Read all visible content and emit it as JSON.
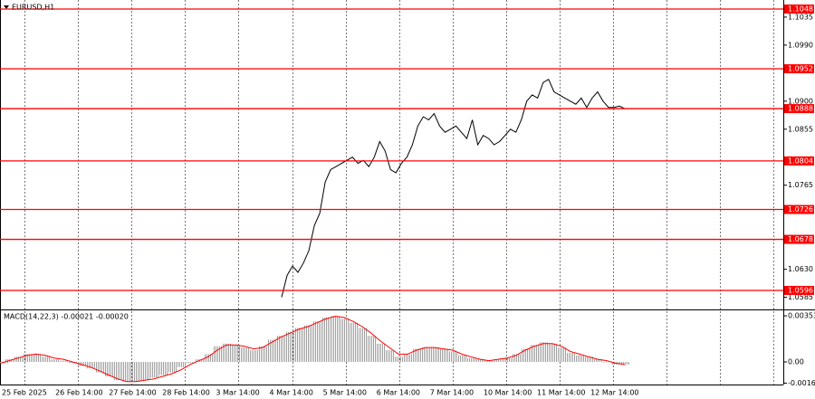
{
  "chart_data": [
    {
      "type": "line",
      "title": "EURUSD,H1",
      "time_labels": [
        "25 Feb 2025",
        "26 Feb 14:00",
        "27 Feb 14:00",
        "28 Feb 14:00",
        "3 Mar 14:00",
        "4 Mar 14:00",
        "5 Mar 14:00",
        "6 Mar 14:00",
        "7 Mar 14:00",
        "10 Mar 14:00",
        "11 Mar 14:00",
        "12 Mar 14:00"
      ],
      "values": [
        1.0585,
        1.062,
        1.0635,
        1.0625,
        1.064,
        1.066,
        1.07,
        1.072,
        1.077,
        1.079,
        1.0795,
        1.08,
        1.0805,
        1.081,
        1.08,
        1.0805,
        1.0795,
        1.081,
        1.0835,
        1.082,
        1.079,
        1.0785,
        1.08,
        1.081,
        1.083,
        1.086,
        1.0875,
        1.087,
        1.088,
        1.086,
        1.085,
        1.0855,
        1.086,
        1.085,
        1.084,
        1.087,
        1.083,
        1.0845,
        1.084,
        1.083,
        1.0835,
        1.0845,
        1.0855,
        1.085,
        1.087,
        1.09,
        1.091,
        1.0905,
        1.093,
        1.0935,
        1.0915,
        1.091,
        1.0905,
        1.09,
        1.0895,
        1.0905,
        1.089,
        1.0905,
        1.0915,
        1.09,
        1.089,
        1.089,
        1.0892,
        1.0888
      ],
      "color": "#000000",
      "ylim": [
        1.05669,
        1.10625
      ],
      "yticks": [
        1.1035,
        {
          "value": 1.099,
          "label": "1.0990"
        },
        {
          "value": 1.09,
          "label": "1.0900"
        },
        1.0855,
        1.0765,
        {
          "value": 1.063,
          "label": "1.0630"
        },
        1.0585
      ],
      "levels": [
        1.1048,
        1.0952,
        1.0888,
        1.0804,
        1.0726,
        1.0678,
        1.0596
      ],
      "level_color": "#ff0000",
      "grid": true
    },
    {
      "type": "macd",
      "title": "MACD(14,22,3) -0.00021 -0.00020",
      "histogram": {
        "color": "#a0a0a0",
        "values": [
          -0.0001,
          0.0002,
          0.0004,
          0.0006,
          0.0006,
          0.0004,
          0.0002,
          0.0001,
          -0.0001,
          -0.0003,
          -0.0005,
          -0.0008,
          -0.0011,
          -0.0014,
          -0.0015,
          -0.0015,
          -0.0014,
          -0.0012,
          -0.001,
          -0.0008,
          -0.0004,
          -0.0001,
          0.0002,
          0.0006,
          0.0012,
          0.0014,
          0.0013,
          0.0011,
          0.0009,
          0.0012,
          0.0017,
          0.002,
          0.0023,
          0.0026,
          0.0028,
          0.0031,
          0.0034,
          0.0035,
          0.0033,
          0.003,
          0.0026,
          0.002,
          0.0014,
          0.0009,
          0.0004,
          0.0006,
          0.001,
          0.0011,
          0.0011,
          0.001,
          0.0008,
          0.0005,
          0.0003,
          0.0002,
          0.0001,
          0.0002,
          0.0003,
          0.0006,
          0.001,
          0.0013,
          0.0015,
          0.0014,
          0.0011,
          0.0007,
          0.0005,
          0.0004,
          0.0002,
          0,
          -0.0002,
          -0.0002
        ]
      },
      "signal": {
        "color": "#ff0000",
        "values": [
          -0.0001,
          0.0001,
          0.0003,
          0.0005,
          0.0006,
          0.0005,
          0.0003,
          0.0002,
          0,
          -0.0002,
          -0.0004,
          -0.0007,
          -0.001,
          -0.0013,
          -0.0015,
          -0.0015,
          -0.0014,
          -0.0013,
          -0.0011,
          -0.0009,
          -0.0006,
          -0.0002,
          0.0001,
          0.0004,
          0.0009,
          0.0013,
          0.0013,
          0.0012,
          0.001,
          0.0011,
          0.0015,
          0.0019,
          0.0022,
          0.0025,
          0.0027,
          0.003,
          0.0033,
          0.0035,
          0.0034,
          0.0031,
          0.0027,
          0.0022,
          0.0016,
          0.0011,
          0.0006,
          0.0006,
          0.0009,
          0.0011,
          0.0011,
          0.001,
          0.0009,
          0.0006,
          0.0004,
          0.0002,
          0.0001,
          0.0002,
          0.0003,
          0.0005,
          0.0009,
          0.0012,
          0.0014,
          0.0014,
          0.0012,
          0.0008,
          0.0006,
          0.0004,
          0.0002,
          0.0001,
          -0.0001,
          -0.0002
        ]
      },
      "ylim": [
        -0.00166,
        0.00388
      ],
      "yticks": [
        0.00353,
        {
          "value": 0,
          "label": "0.00"
        },
        -0.00162
      ]
    }
  ]
}
